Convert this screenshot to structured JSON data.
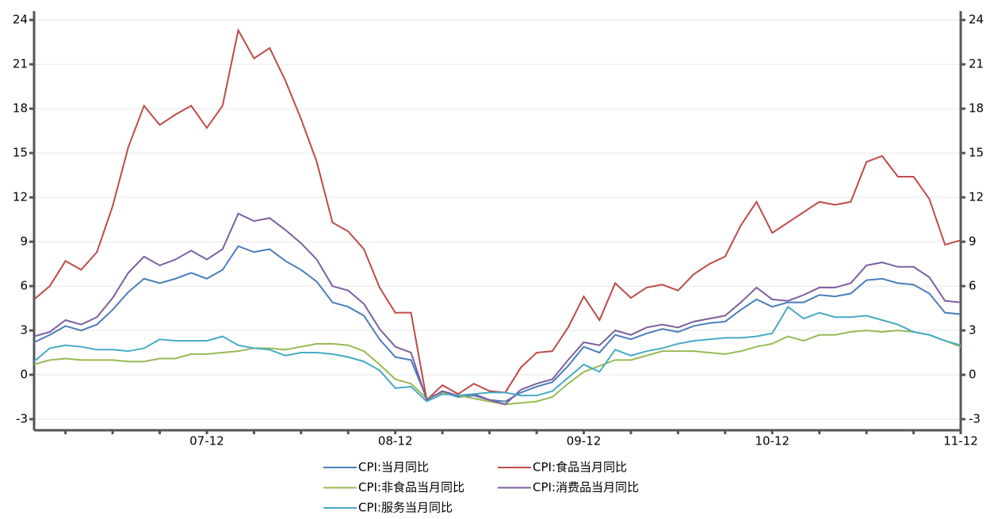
{
  "chart_data": {
    "type": "line",
    "categories": [
      null,
      null,
      null,
      null,
      null,
      null,
      null,
      null,
      null,
      null,
      null,
      "07-12",
      null,
      null,
      null,
      null,
      null,
      null,
      null,
      null,
      null,
      null,
      null,
      "08-12",
      null,
      null,
      null,
      null,
      null,
      null,
      null,
      null,
      null,
      null,
      null,
      "09-12",
      null,
      null,
      null,
      null,
      null,
      null,
      null,
      null,
      null,
      null,
      null,
      "10-12",
      null,
      null,
      null,
      null,
      null,
      null,
      null,
      null,
      null,
      null,
      null,
      "11-12"
    ],
    "series": [
      {
        "name": "CPI:当月同比",
        "color": "#4a7ebb",
        "values": [
          2.2,
          2.7,
          3.3,
          3.0,
          3.4,
          4.4,
          5.6,
          6.5,
          6.2,
          6.5,
          6.9,
          6.5,
          7.1,
          8.7,
          8.3,
          8.5,
          7.7,
          7.1,
          6.3,
          4.9,
          4.6,
          4.0,
          2.4,
          1.2,
          1.0,
          -1.6,
          -1.2,
          -1.5,
          -1.4,
          -1.7,
          -1.8,
          -1.2,
          -0.8,
          -0.5,
          0.6,
          1.9,
          1.5,
          2.7,
          2.4,
          2.8,
          3.1,
          2.9,
          3.3,
          3.5,
          3.6,
          4.4,
          5.1,
          4.6,
          4.9,
          4.9,
          5.4,
          5.3,
          5.5,
          6.4,
          6.5,
          6.2,
          6.1,
          5.5,
          4.2,
          4.1
        ]
      },
      {
        "name": "CPI:食品当月同比",
        "color": "#be4b48",
        "values": [
          5.1,
          6.0,
          7.7,
          7.1,
          8.3,
          11.4,
          15.4,
          18.2,
          16.9,
          17.6,
          18.2,
          16.7,
          18.2,
          23.3,
          21.4,
          22.1,
          19.9,
          17.3,
          14.4,
          10.3,
          9.7,
          8.5,
          5.9,
          4.2,
          4.2,
          -1.7,
          -0.7,
          -1.3,
          -0.6,
          -1.1,
          -1.2,
          0.5,
          1.5,
          1.6,
          3.2,
          5.3,
          3.7,
          6.2,
          5.2,
          5.9,
          6.1,
          5.7,
          6.8,
          7.5,
          8.0,
          10.1,
          11.7,
          9.6,
          10.3,
          11.0,
          11.7,
          11.5,
          11.7,
          14.4,
          14.8,
          13.4,
          13.4,
          11.9,
          8.8,
          9.1
        ]
      },
      {
        "name": "CPI:非食品当月同比",
        "color": "#98b954",
        "values": [
          0.7,
          1.0,
          1.1,
          1.0,
          1.0,
          1.0,
          0.9,
          0.9,
          1.1,
          1.1,
          1.4,
          1.4,
          1.5,
          1.6,
          1.8,
          1.8,
          1.7,
          1.9,
          2.1,
          2.1,
          2.0,
          1.6,
          0.7,
          -0.3,
          -0.6,
          -1.6,
          -1.2,
          -1.4,
          -1.6,
          -1.8,
          -2.0,
          -1.9,
          -1.8,
          -1.5,
          -0.6,
          0.2,
          0.6,
          1.0,
          1.0,
          1.3,
          1.6,
          1.6,
          1.6,
          1.5,
          1.4,
          1.6,
          1.9,
          2.1,
          2.6,
          2.3,
          2.7,
          2.7,
          2.9,
          3.0,
          2.9,
          3.0,
          2.9,
          2.7,
          2.3,
          1.9
        ]
      },
      {
        "name": "CPI:消费品当月同比",
        "color": "#7d5fa0",
        "values": [
          2.6,
          2.9,
          3.7,
          3.4,
          3.9,
          5.2,
          6.9,
          8.0,
          7.4,
          7.8,
          8.4,
          7.8,
          8.5,
          10.9,
          10.4,
          10.6,
          9.8,
          8.9,
          7.8,
          6.0,
          5.7,
          4.8,
          3.1,
          1.9,
          1.5,
          -1.7,
          -1.1,
          -1.4,
          -1.3,
          -1.7,
          -2.0,
          -1.0,
          -0.6,
          -0.3,
          1.0,
          2.2,
          2.0,
          3.0,
          2.7,
          3.2,
          3.4,
          3.2,
          3.6,
          3.8,
          4.0,
          4.9,
          5.9,
          5.1,
          5.0,
          5.4,
          5.9,
          5.9,
          6.2,
          7.4,
          7.6,
          7.3,
          7.3,
          6.6,
          5.0,
          4.9
        ]
      },
      {
        "name": "CPI:服务当月同比",
        "color": "#46aac5",
        "values": [
          0.9,
          1.8,
          2.0,
          1.9,
          1.7,
          1.7,
          1.6,
          1.8,
          2.4,
          2.3,
          2.3,
          2.3,
          2.6,
          2.0,
          1.8,
          1.7,
          1.3,
          1.5,
          1.5,
          1.4,
          1.2,
          0.9,
          0.3,
          -0.9,
          -0.8,
          -1.8,
          -1.3,
          -1.4,
          -1.3,
          -1.2,
          -1.2,
          -1.4,
          -1.4,
          -1.1,
          -0.2,
          0.7,
          0.2,
          1.7,
          1.3,
          1.6,
          1.8,
          2.1,
          2.3,
          2.4,
          2.5,
          2.5,
          2.6,
          2.8,
          4.6,
          3.8,
          4.2,
          3.9,
          3.9,
          4.0,
          3.7,
          3.4,
          2.9,
          2.7,
          2.3,
          2.0
        ]
      }
    ],
    "ylim": [
      -3.75,
      24.6
    ],
    "yticks": [
      -3,
      0,
      3,
      6,
      9,
      12,
      15,
      18,
      21,
      24
    ],
    "y2lim": [
      -3.75,
      24.6
    ],
    "y2ticks": [
      -3,
      0,
      3,
      6,
      9,
      12,
      15,
      18,
      21,
      24
    ],
    "grid": true,
    "legend": "bottom"
  }
}
